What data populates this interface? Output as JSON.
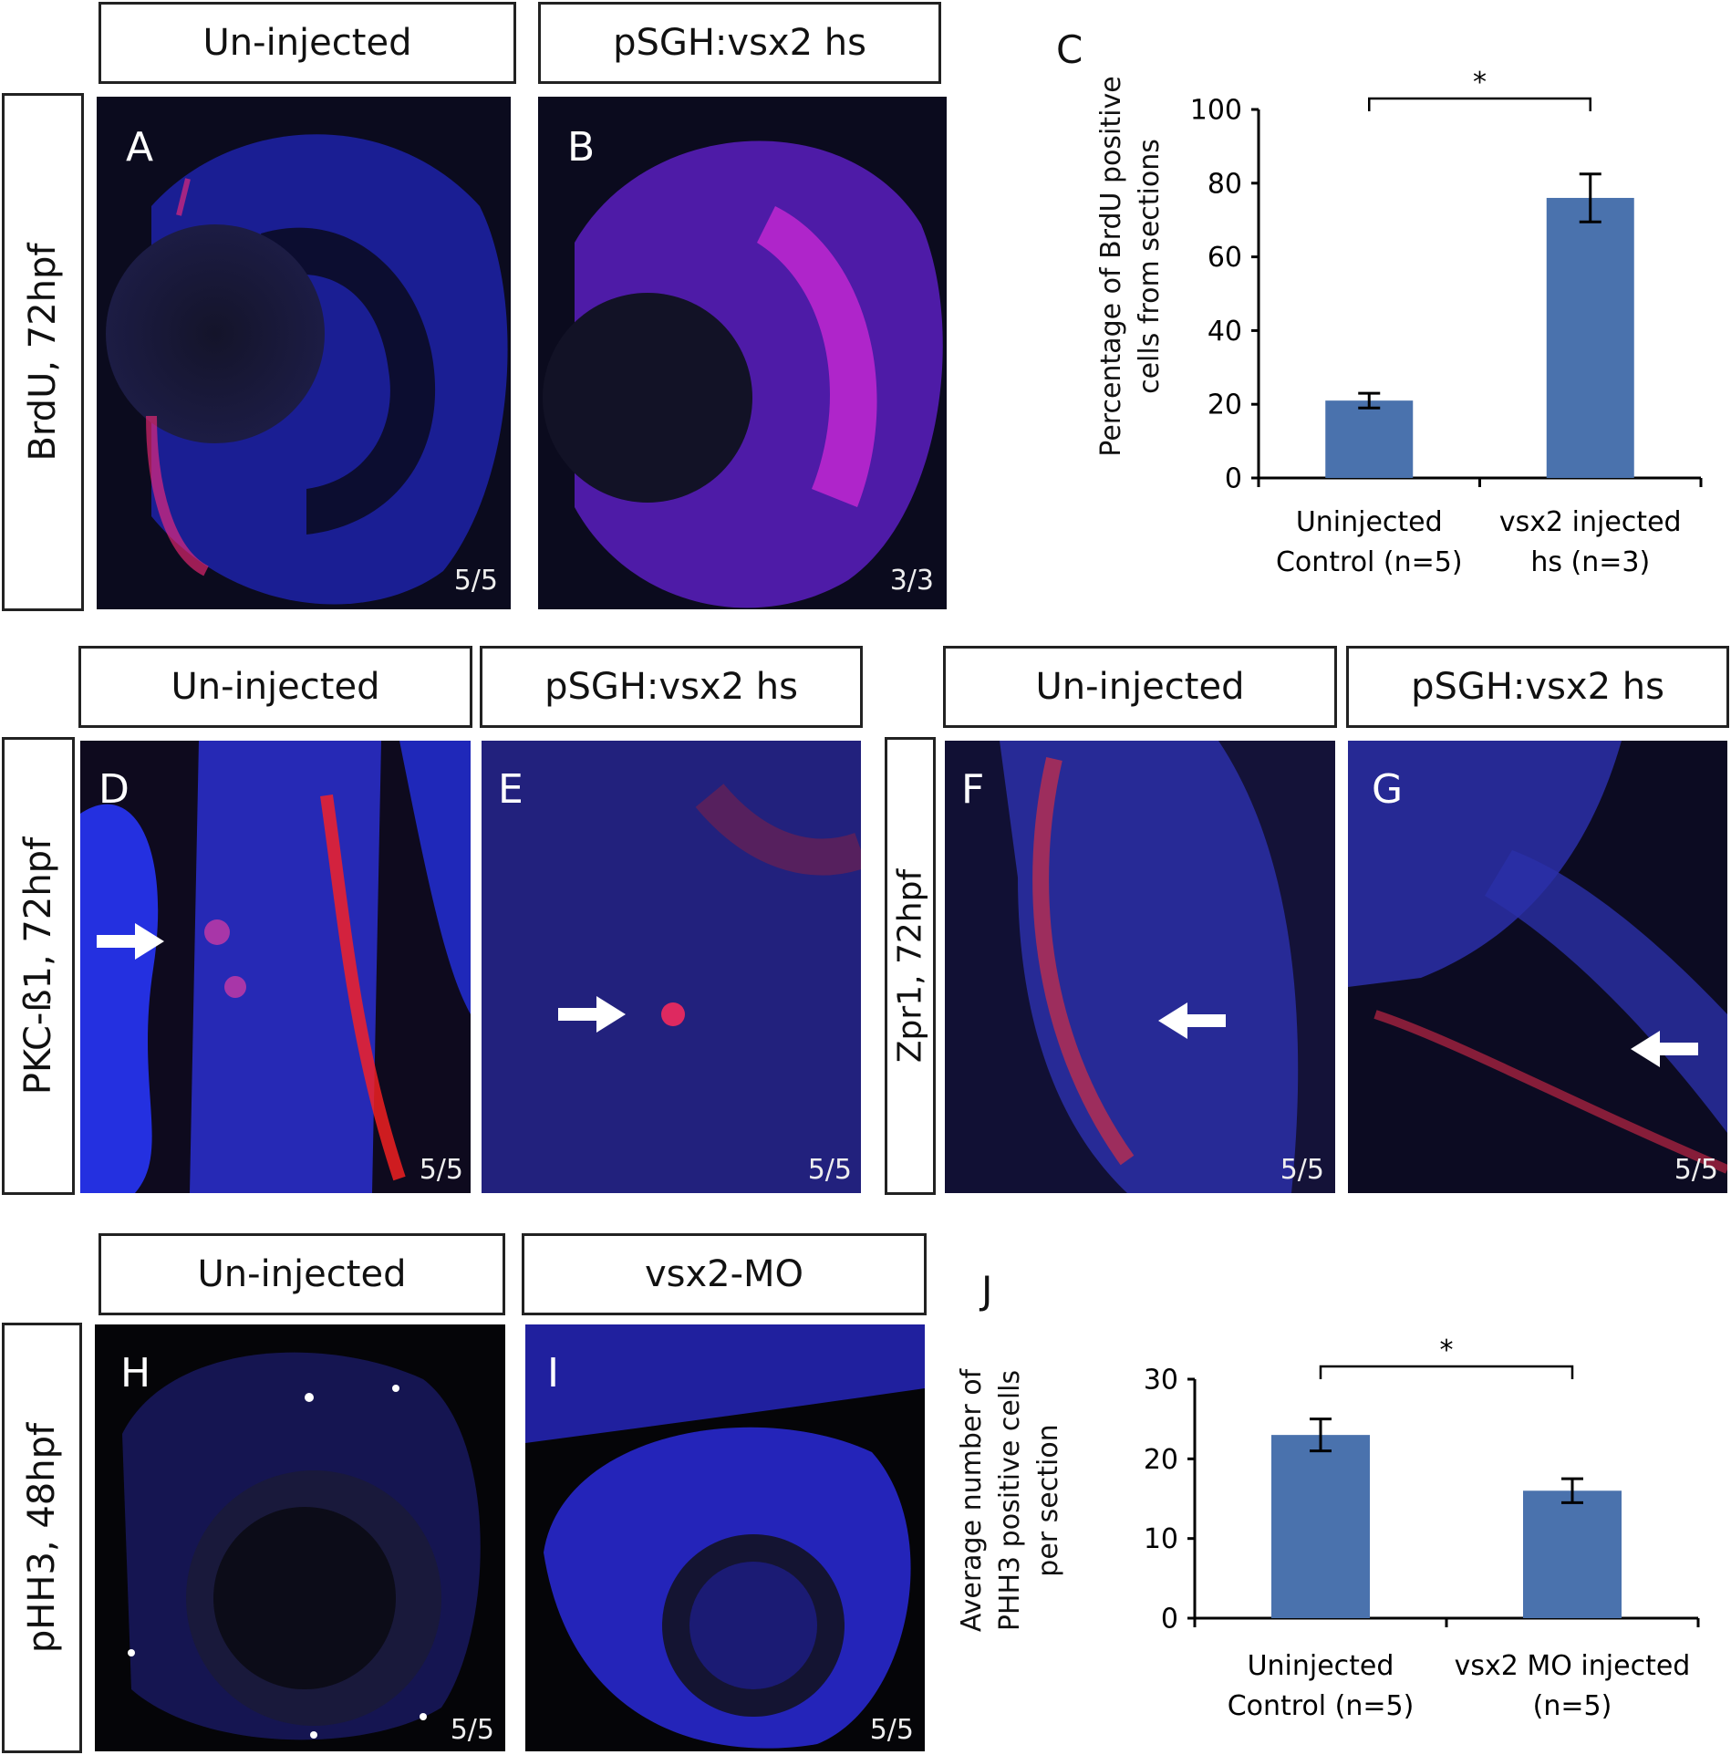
{
  "row1": {
    "side_label": "BrdU, 72hpf",
    "headers": [
      "Un-injected",
      "pSGH:vsx2 hs"
    ],
    "panels": [
      {
        "letter": "A",
        "ratio": "5/5"
      },
      {
        "letter": "B",
        "ratio": "3/3"
      }
    ]
  },
  "row2": {
    "side_label_left": "PKC-ß1, 72hpf",
    "side_label_right": "Zpr1, 72hpf",
    "headers": [
      "Un-injected",
      "pSGH:vsx2 hs",
      "Un-injected",
      "pSGH:vsx2 hs"
    ],
    "panels": [
      {
        "letter": "D",
        "ratio": "5/5"
      },
      {
        "letter": "E",
        "ratio": "5/5"
      },
      {
        "letter": "F",
        "ratio": "5/5"
      },
      {
        "letter": "G",
        "ratio": "5/5"
      }
    ]
  },
  "row3": {
    "side_label": "pHH3, 48hpf",
    "headers": [
      "Un-injected",
      "vsx2-MO"
    ],
    "panels": [
      {
        "letter": "H",
        "ratio": "5/5"
      },
      {
        "letter": "I",
        "ratio": "5/5"
      }
    ]
  },
  "chart_data": [
    {
      "panel": "C",
      "type": "bar",
      "categories": [
        [
          "Uninjected",
          "Control (n=5)"
        ],
        [
          "vsx2 injected",
          "hs (n=3)"
        ]
      ],
      "values": [
        21,
        76
      ],
      "errors": [
        2,
        6.5
      ],
      "ylabel": [
        "Percentage of BrdU positive",
        "cells from sections"
      ],
      "ylim": [
        0,
        100
      ],
      "yticks": [
        0,
        20,
        40,
        60,
        80,
        100
      ],
      "significance": "*",
      "bar_color": "#4a72ad"
    },
    {
      "panel": "J",
      "type": "bar",
      "categories": [
        [
          "Uninjected",
          "Control (n=5)"
        ],
        [
          "vsx2 MO injected",
          "(n=5)"
        ]
      ],
      "values": [
        23,
        16
      ],
      "errors": [
        2,
        1.5
      ],
      "ylabel": [
        "Average number of",
        "PHH3 positive cells",
        "per section"
      ],
      "ylim": [
        0,
        30
      ],
      "yticks": [
        0,
        10,
        20,
        30
      ],
      "significance": "*",
      "bar_color": "#4a72ad"
    }
  ]
}
